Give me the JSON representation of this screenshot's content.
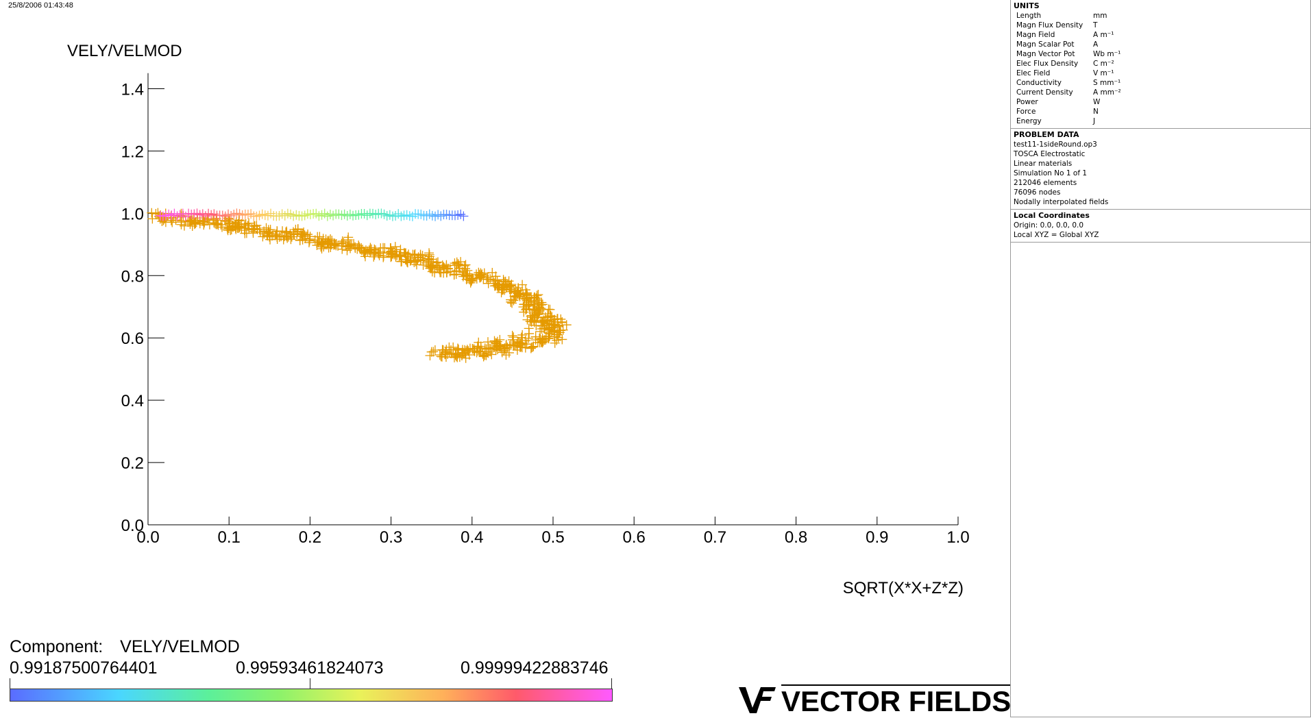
{
  "timestamp": "25/8/2006 01:43:48",
  "chart_data": {
    "type": "scatter",
    "ylabel": "VELY/VELMOD",
    "xlabel": "SQRT(X*X+Z*Z)",
    "xlim": [
      0.0,
      1.0
    ],
    "ylim": [
      0.0,
      1.5
    ],
    "x_ticks": [
      "0.0",
      "0.1",
      "0.2",
      "0.3",
      "0.4",
      "0.5",
      "0.6",
      "0.7",
      "0.8",
      "0.9",
      "1.0"
    ],
    "y_ticks": [
      "0.0",
      "0.2",
      "0.4",
      "0.6",
      "0.8",
      "1.0",
      "1.2",
      "1.4"
    ],
    "marker": "+",
    "series": [
      {
        "color": "#e59a00",
        "points": [
          [
            0.015,
            0.99
          ],
          [
            0.03,
            0.985
          ],
          [
            0.05,
            0.98
          ],
          [
            0.07,
            0.975
          ],
          [
            0.09,
            0.97
          ],
          [
            0.11,
            0.96
          ],
          [
            0.13,
            0.95
          ],
          [
            0.15,
            0.94
          ],
          [
            0.17,
            0.93
          ],
          [
            0.19,
            0.92
          ],
          [
            0.21,
            0.91
          ],
          [
            0.23,
            0.905
          ],
          [
            0.25,
            0.895
          ],
          [
            0.27,
            0.885
          ],
          [
            0.29,
            0.875
          ],
          [
            0.31,
            0.865
          ],
          [
            0.33,
            0.855
          ],
          [
            0.35,
            0.84
          ],
          [
            0.37,
            0.825
          ],
          [
            0.39,
            0.81
          ],
          [
            0.41,
            0.795
          ],
          [
            0.43,
            0.775
          ],
          [
            0.45,
            0.755
          ],
          [
            0.47,
            0.73
          ],
          [
            0.48,
            0.705
          ],
          [
            0.49,
            0.68
          ],
          [
            0.5,
            0.655
          ],
          [
            0.505,
            0.63
          ],
          [
            0.5,
            0.61
          ],
          [
            0.49,
            0.595
          ],
          [
            0.47,
            0.58
          ],
          [
            0.45,
            0.57
          ],
          [
            0.43,
            0.56
          ],
          [
            0.41,
            0.555
          ],
          [
            0.39,
            0.55
          ],
          [
            0.37,
            0.55
          ],
          [
            0.36,
            0.548
          ],
          [
            0.05,
            0.97
          ],
          [
            0.1,
            0.955
          ],
          [
            0.16,
            0.93
          ],
          [
            0.22,
            0.9
          ],
          [
            0.28,
            0.87
          ],
          [
            0.32,
            0.85
          ],
          [
            0.36,
            0.82
          ],
          [
            0.4,
            0.79
          ],
          [
            0.44,
            0.76
          ],
          [
            0.46,
            0.72
          ],
          [
            0.47,
            0.68
          ],
          [
            0.48,
            0.645
          ],
          [
            0.46,
            0.6
          ],
          [
            0.44,
            0.585
          ],
          [
            0.42,
            0.575
          ],
          [
            0.4,
            0.565
          ],
          [
            0.38,
            0.56
          ],
          [
            0.12,
            0.965
          ],
          [
            0.18,
            0.94
          ],
          [
            0.24,
            0.91
          ],
          [
            0.3,
            0.88
          ],
          [
            0.34,
            0.86
          ],
          [
            0.38,
            0.83
          ],
          [
            0.42,
            0.8
          ],
          [
            0.45,
            0.77
          ],
          [
            0.465,
            0.74
          ],
          [
            0.475,
            0.7
          ],
          [
            0.485,
            0.66
          ],
          [
            0.49,
            0.635
          ]
        ]
      },
      {
        "name_colormapped": true,
        "points_x_range": [
          0.015,
          0.39
        ],
        "y_value": 0.995
      }
    ]
  },
  "legend": {
    "component_label": "Component:",
    "component_value": "VELY/VELMOD",
    "min": "0.99187500764401",
    "mid": "0.99593461824073",
    "max": "0.99999422883746"
  },
  "brand": "VECTOR FIELDS",
  "panel": {
    "units_title": "UNITS",
    "units": [
      {
        "name": "Length",
        "unit": "mm"
      },
      {
        "name": "Magn Flux Density",
        "unit": "T"
      },
      {
        "name": "Magn Field",
        "unit": "A m⁻¹"
      },
      {
        "name": "Magn Scalar Pot",
        "unit": "A"
      },
      {
        "name": "Magn Vector Pot",
        "unit": "Wb m⁻¹"
      },
      {
        "name": "Elec Flux Density",
        "unit": "C m⁻²"
      },
      {
        "name": "Elec Field",
        "unit": "V m⁻¹"
      },
      {
        "name": "Conductivity",
        "unit": "S mm⁻¹"
      },
      {
        "name": "Current Density",
        "unit": "A mm⁻²"
      },
      {
        "name": "Power",
        "unit": "W"
      },
      {
        "name": "Force",
        "unit": "N"
      },
      {
        "name": "Energy",
        "unit": "J"
      }
    ],
    "problem_title": "PROBLEM DATA",
    "problem_lines": [
      "test11-1sideRound.op3",
      "TOSCA Electrostatic",
      "Linear materials",
      "Simulation No 1 of 1",
      "212046 elements",
      "76096 nodes",
      "Nodally interpolated fields"
    ],
    "coords_title": "Local Coordinates",
    "coords_lines": [
      "Origin: 0.0, 0.0, 0.0",
      "Local XYZ = Global XYZ"
    ]
  }
}
